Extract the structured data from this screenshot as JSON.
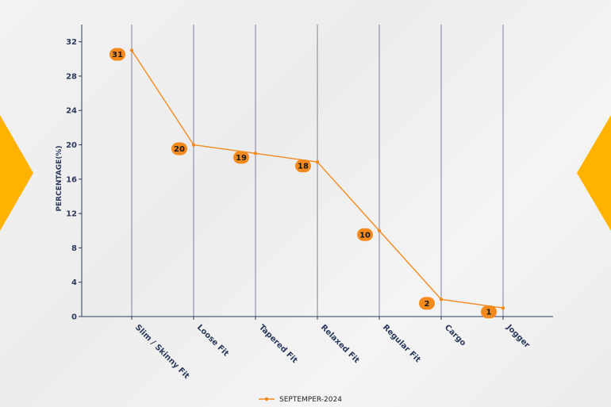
{
  "chart_data": {
    "type": "line",
    "categories": [
      "Slim / Skinny Fit",
      "Loose Fit",
      "Tapered Fit",
      "Relaxed Fit",
      "Regular Fit",
      "Cargo",
      "Jogger"
    ],
    "series": [
      {
        "name": "SEPTEMPER-2024",
        "values": [
          31,
          20,
          19,
          18,
          10,
          2,
          1
        ]
      }
    ],
    "ylabel": "PERCENTAGE(%)",
    "xlabel": "",
    "ylim": [
      0,
      34
    ],
    "yticks": [
      0,
      4,
      8,
      12,
      16,
      20,
      24,
      28,
      32
    ],
    "grid": "vertical",
    "legend": "bottom-center",
    "colors": {
      "line": "#f28a1e",
      "label_bg": "#f28a1e",
      "axis": "#2b3a5c",
      "decor": "#ffb300"
    }
  }
}
